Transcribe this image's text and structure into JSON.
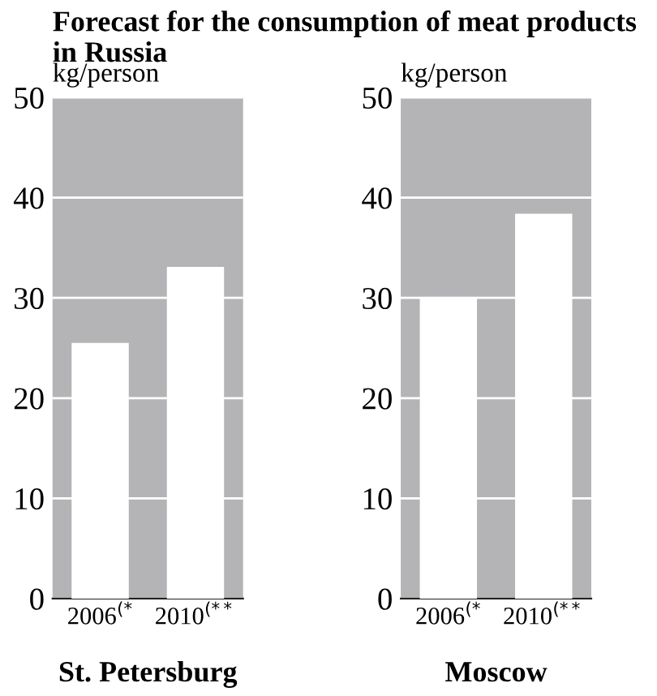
{
  "chart_data": [
    {
      "type": "bar",
      "title": "Forecast for the consumption of meat products in Russia",
      "ylabel": "kg/person",
      "xlabel": "St. Petersburg",
      "categories": [
        "2006$^{(*}$",
        "2010$^{(**}$"
      ],
      "values": [
        25.5,
        33.1
      ],
      "color": "#ffffff",
      "ylim": [
        0,
        50
      ],
      "yticks": [
        0,
        10,
        20,
        30,
        40,
        50
      ],
      "grid": "y"
    },
    {
      "type": "bar",
      "ylabel": "kg/person",
      "xlabel": "Moscow",
      "categories": [
        "2006$^{(*}$",
        "2010$^{(**}$"
      ],
      "values": [
        30,
        38.4
      ],
      "color": "#ffffff",
      "ylim": [
        0,
        50
      ],
      "yticks": [
        0,
        10,
        20,
        30,
        40,
        50
      ],
      "grid": "y"
    }
  ]
}
